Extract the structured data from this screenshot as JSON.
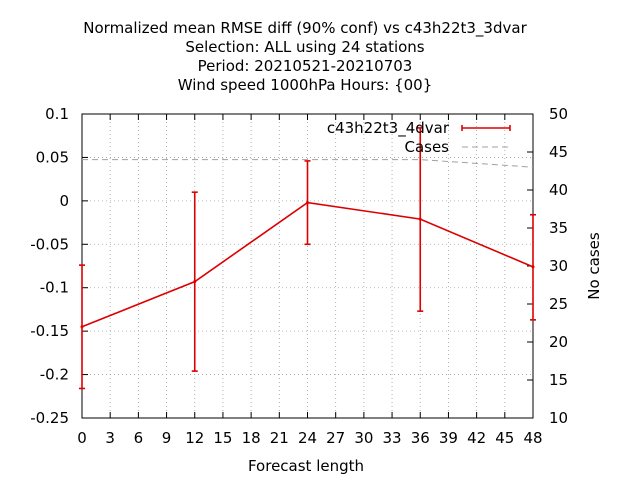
{
  "chart_data": {
    "type": "line",
    "title_lines": [
      "Normalized mean RMSE diff (90% conf) vs c43h22t3_3dvar",
      "Selection: ALL using    24 stations",
      "Period: 20210521-20210703",
      "Wind speed 1000hPa   Hours: {00}"
    ],
    "xlabel": "Forecast length",
    "ylabel": "",
    "y2label": "No cases",
    "xlim": [
      0,
      48
    ],
    "ylim": [
      -0.25,
      0.1
    ],
    "y2lim": [
      10,
      50
    ],
    "x_ticks": [
      0,
      3,
      6,
      9,
      12,
      15,
      18,
      21,
      24,
      27,
      30,
      33,
      36,
      39,
      42,
      45,
      48
    ],
    "y_ticks": [
      0.1,
      0.05,
      0,
      -0.05,
      -0.1,
      -0.15,
      -0.2,
      -0.25
    ],
    "y_tick_labels": [
      "0.1",
      "0.05",
      "0",
      "-0.05",
      "-0.1",
      "-0.15",
      "-0.2",
      "-0.25"
    ],
    "y2_ticks": [
      10,
      15,
      20,
      25,
      30,
      35,
      40,
      45,
      50
    ],
    "grid": true,
    "legend_position": "top-right",
    "series": [
      {
        "name": "c43h22t3_4dvar",
        "color": "#dd0000",
        "style": "solid-with-errorbars",
        "axis": "left",
        "x": [
          0,
          12,
          24,
          36,
          48
        ],
        "y": [
          -0.145,
          -0.093,
          -0.002,
          -0.021,
          -0.076
        ],
        "err_low": [
          -0.216,
          -0.196,
          -0.05,
          -0.127,
          -0.137
        ],
        "err_high": [
          -0.074,
          0.01,
          0.046,
          0.084,
          -0.016
        ]
      },
      {
        "name": "Cases",
        "color": "#a0a0a0",
        "style": "dashed",
        "axis": "right",
        "x": [
          0,
          12,
          24,
          36,
          48
        ],
        "y": [
          44,
          44,
          44,
          44,
          43
        ]
      }
    ]
  }
}
